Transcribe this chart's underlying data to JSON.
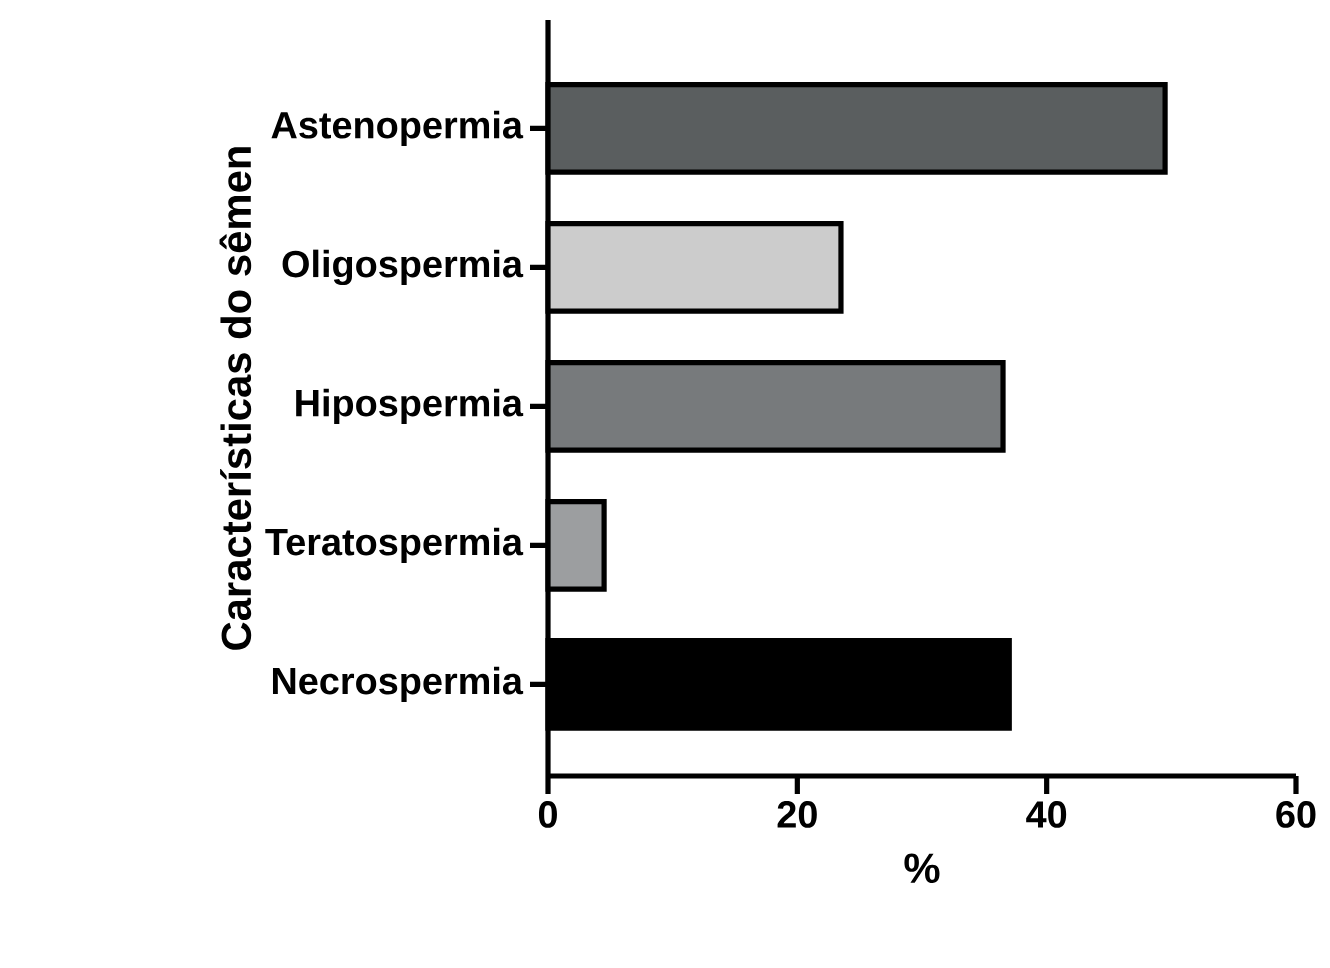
{
  "chart_data": {
    "type": "bar",
    "orientation": "horizontal",
    "ylabel": "Características do sêmen",
    "xlabel": "%",
    "categories": [
      "Astenopermia",
      "Oligospermia",
      "Hipospermia",
      "Teratospermia",
      "Necrospermia"
    ],
    "values": [
      49.5,
      23.5,
      36.5,
      4.5,
      37
    ],
    "colors": [
      "#5a5e5f",
      "#cccccc",
      "#777a7c",
      "#9c9ea0",
      "#000000"
    ],
    "xlim": [
      0,
      60
    ],
    "xticks": [
      0,
      20,
      40,
      60
    ]
  }
}
